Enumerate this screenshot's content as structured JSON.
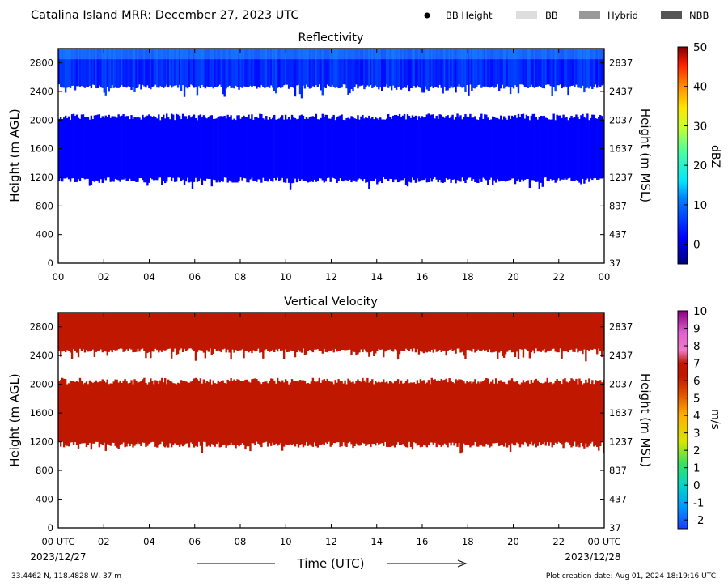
{
  "header": {
    "title": "Catalina Island MRR:  December 27, 2023 UTC",
    "legend": [
      {
        "label": "BB Height",
        "kind": "dot",
        "color": "#000000"
      },
      {
        "label": "BB",
        "kind": "swatch",
        "color": "#dddddd"
      },
      {
        "label": "Hybrid",
        "kind": "swatch",
        "color": "#999999"
      },
      {
        "label": "NBB",
        "kind": "swatch",
        "color": "#555555"
      }
    ]
  },
  "footer": {
    "location": "33.4462 N, 118.4828 W, 37 m",
    "creation_date": "Plot creation date: Aug 01, 2024 18:19:16 UTC",
    "xlabel": "Time (UTC)",
    "start_date": "2023/12/27",
    "end_date": "2023/12/28"
  },
  "chart_data": [
    {
      "type": "heatmap",
      "title": "Reflectivity",
      "ylabel": "Height (m AGL)",
      "ylabel_right": "Height (m MSL)",
      "xlim": [
        0,
        24
      ],
      "ylim": [
        0,
        3000
      ],
      "x_ticks": [
        "00",
        "02",
        "04",
        "06",
        "08",
        "10",
        "12",
        "14",
        "16",
        "18",
        "20",
        "22",
        "00"
      ],
      "y_ticks": [
        0,
        400,
        800,
        1200,
        1600,
        2000,
        2400,
        2800
      ],
      "y_ticks_right": [
        37,
        437,
        837,
        1237,
        1637,
        2037,
        2437,
        2837
      ],
      "layers": [
        {
          "name": "upper",
          "base": 2500,
          "top": 3000,
          "value_range": [
            2,
            7
          ]
        },
        {
          "name": "lower",
          "base": 1200,
          "top": 2000,
          "value_range": [
            -1,
            2
          ]
        }
      ],
      "colorbar": {
        "label": "dBZ",
        "min": -5,
        "max": 50,
        "ticks": [
          0,
          10,
          20,
          30,
          40,
          50
        ]
      }
    },
    {
      "type": "heatmap",
      "title": "Vertical Velocity",
      "ylabel": "Height (m AGL)",
      "ylabel_right": "Height (m MSL)",
      "xlim": [
        0,
        24
      ],
      "ylim": [
        0,
        3000
      ],
      "x_ticks": [
        "00 UTC",
        "02",
        "04",
        "06",
        "08",
        "10",
        "12",
        "14",
        "16",
        "18",
        "20",
        "22",
        "00 UTC"
      ],
      "y_ticks": [
        0,
        400,
        800,
        1200,
        1600,
        2000,
        2400,
        2800
      ],
      "y_ticks_right": [
        37,
        437,
        837,
        1237,
        1637,
        2037,
        2437,
        2837
      ],
      "layers": [
        {
          "name": "upper",
          "base": 2500,
          "top": 3000,
          "value_range": [
            6,
            6
          ]
        },
        {
          "name": "lower",
          "base": 1200,
          "top": 2000,
          "value_range": [
            6,
            6
          ]
        }
      ],
      "colorbar": {
        "label": "m/s",
        "min": -2.5,
        "max": 10,
        "ticks": [
          -2,
          -1,
          0,
          1,
          2,
          3,
          4,
          5,
          6,
          7,
          8,
          9,
          10
        ]
      }
    }
  ]
}
